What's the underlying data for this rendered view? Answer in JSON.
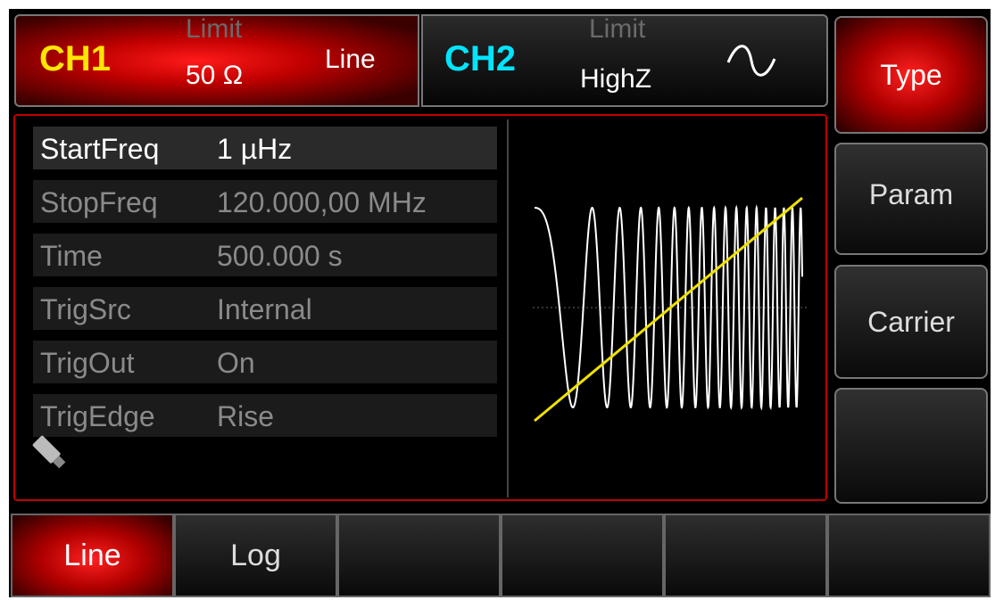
{
  "channels": [
    {
      "name": "CH1",
      "limit_label": "Limit",
      "load": "50 Ω",
      "mode": "Line"
    },
    {
      "name": "CH2",
      "limit_label": "Limit",
      "load": "HighZ"
    }
  ],
  "parameters": [
    {
      "label": "StartFreq",
      "value": "1 µHz"
    },
    {
      "label": "StopFreq",
      "value": "120.000,00 MHz"
    },
    {
      "label": "Time",
      "value": "500.000 s"
    },
    {
      "label": "TrigSrc",
      "value": "Internal"
    },
    {
      "label": "TrigOut",
      "value": "On"
    },
    {
      "label": "TrigEdge",
      "value": "Rise"
    }
  ],
  "softkeys": [
    "Type",
    "Param",
    "Carrier"
  ],
  "bottom_menu": [
    "Line",
    "Log"
  ]
}
